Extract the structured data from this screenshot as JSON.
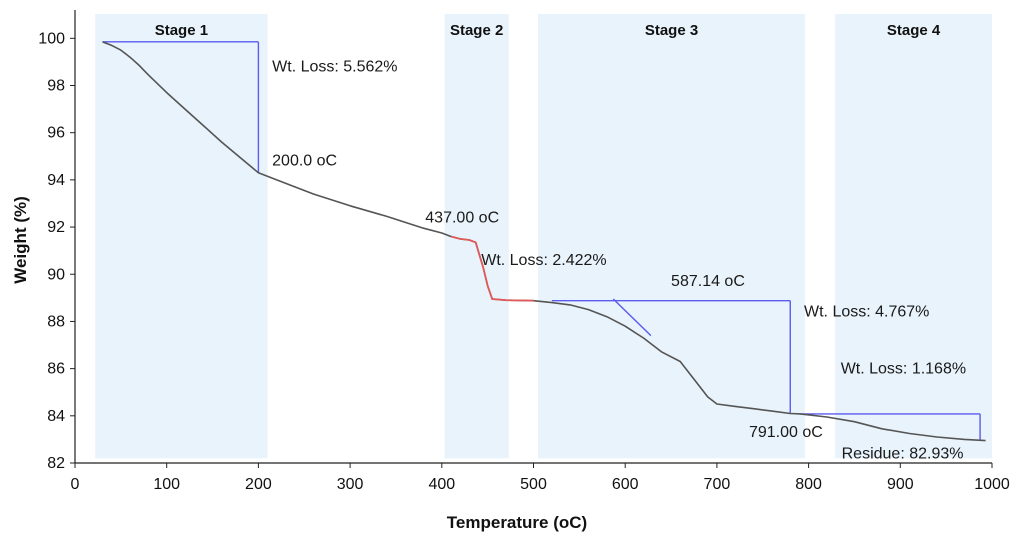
{
  "chart_data": {
    "type": "line",
    "xlabel": "Temperature (oC)",
    "ylabel": "Weight (%)",
    "xlim": [
      0,
      1000
    ],
    "ylim": [
      82,
      101.2
    ],
    "x_ticks": [
      0,
      100,
      200,
      300,
      400,
      500,
      600,
      700,
      800,
      900,
      1000
    ],
    "y_ticks": [
      82,
      84,
      86,
      88,
      90,
      92,
      94,
      96,
      98,
      100
    ],
    "grid": false,
    "colors": {
      "curve": "#555555",
      "highlight": "#e05a5a",
      "annotation": "#5b5bf0",
      "stage_band": "#e8f3fb"
    },
    "stages": [
      {
        "label": "Stage 1",
        "x_range": [
          22,
          210
        ]
      },
      {
        "label": "Stage 2",
        "x_range": [
          403,
          473
        ]
      },
      {
        "label": "Stage 3",
        "x_range": [
          505,
          796
        ]
      },
      {
        "label": "Stage 4",
        "x_range": [
          829,
          1000
        ]
      }
    ],
    "series": [
      {
        "x": [
          30,
          40,
          50,
          60,
          70,
          80,
          100,
          120,
          140,
          160,
          180,
          200,
          220,
          260,
          300,
          340,
          380,
          400,
          410,
          420,
          430,
          437,
          445,
          450,
          455,
          470,
          500,
          520,
          540,
          560,
          580,
          600,
          620,
          640,
          660,
          680,
          690,
          700,
          720,
          740,
          760,
          780,
          791,
          820,
          850,
          880,
          910,
          940,
          970,
          993
        ],
        "y": [
          99.85,
          99.7,
          99.5,
          99.2,
          98.85,
          98.45,
          97.7,
          97.0,
          96.3,
          95.6,
          94.95,
          94.3,
          94.0,
          93.4,
          92.9,
          92.45,
          91.95,
          91.75,
          91.6,
          91.5,
          91.45,
          91.35,
          90.3,
          89.5,
          88.95,
          88.9,
          88.88,
          88.8,
          88.7,
          88.5,
          88.2,
          87.8,
          87.3,
          86.7,
          86.3,
          85.3,
          84.8,
          84.5,
          84.4,
          84.3,
          84.2,
          84.1,
          84.08,
          83.95,
          83.75,
          83.45,
          83.25,
          83.1,
          83.0,
          82.95
        ]
      }
    ],
    "highlight_range": [
      403,
      505
    ],
    "annotations": [
      {
        "text": "Wt. Loss: 5.562%",
        "x": 215,
        "y": 98.6
      },
      {
        "text": "200.0 oC",
        "x": 215,
        "y": 94.6
      },
      {
        "text": "437.00 oC",
        "x": 382,
        "y": 92.2
      },
      {
        "text": "Wt. Loss: 2.422%",
        "x": 443,
        "y": 90.4
      },
      {
        "text": "587.14 oC",
        "x": 650,
        "y": 89.5
      },
      {
        "text": "Wt. Loss: 4.767%",
        "x": 795,
        "y": 88.2
      },
      {
        "text": "Wt. Loss: 1.168%",
        "x": 835,
        "y": 85.8
      },
      {
        "text": "791.00 oC",
        "x": 735,
        "y": 83.1
      },
      {
        "text": "Residue: 82.93%",
        "x": 836,
        "y": 82.2
      }
    ],
    "brackets": [
      {
        "x0": 30,
        "y_top": 99.85,
        "x1": 200,
        "y_bottom": 94.3
      },
      {
        "x0": 520,
        "y_top": 88.88,
        "x1": 780,
        "y_bottom": 84.08
      },
      {
        "x0": 790,
        "y_top": 84.08,
        "x1": 987,
        "y_bottom": 82.95
      }
    ],
    "tangent_line": {
      "from": [
        587,
        88.95
      ],
      "to": [
        628,
        87.4
      ]
    }
  }
}
